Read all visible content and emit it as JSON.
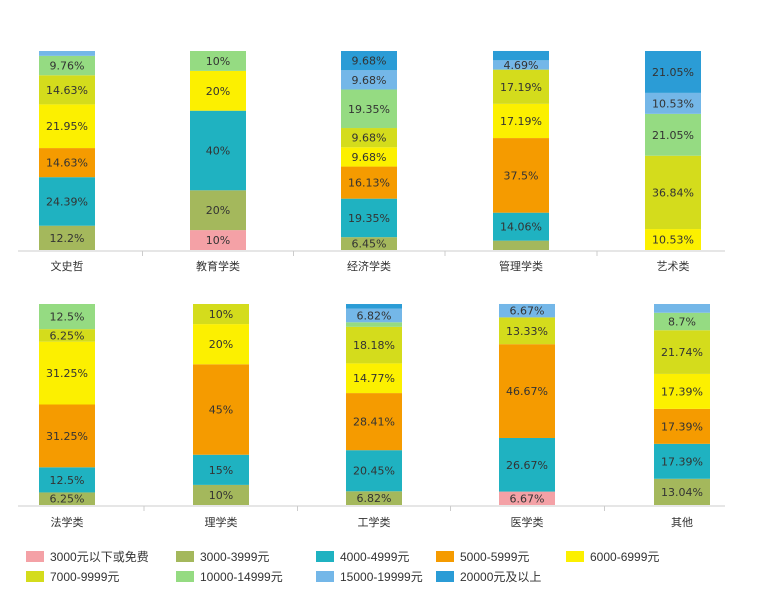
{
  "chart_data": [
    {
      "type": "bar",
      "stacked": true,
      "categories": [
        "文史哲",
        "教育学类",
        "经济学类",
        "管理学类",
        "艺术类"
      ],
      "series": [
        {
          "name": "3000元以下或免费",
          "values": [
            0,
            10,
            0,
            0,
            0
          ]
        },
        {
          "name": "3000-3999元",
          "values": [
            12.2,
            20,
            6.45,
            4.69,
            0
          ]
        },
        {
          "name": "4000-4999元",
          "values": [
            24.39,
            40,
            19.35,
            14.06,
            0
          ]
        },
        {
          "name": "5000-5999元",
          "values": [
            14.63,
            0,
            16.13,
            37.5,
            0
          ]
        },
        {
          "name": "6000-6999元",
          "values": [
            21.95,
            20,
            9.68,
            17.19,
            10.53
          ]
        },
        {
          "name": "7000-9999元",
          "values": [
            14.63,
            0,
            9.68,
            17.19,
            36.84
          ]
        },
        {
          "name": "10000-14999元",
          "values": [
            9.76,
            10,
            19.35,
            0,
            21.05
          ]
        },
        {
          "name": "15000-19999元",
          "values": [
            2.44,
            0,
            9.68,
            4.69,
            10.53
          ]
        },
        {
          "name": "20000元及以上",
          "values": [
            0,
            0,
            9.68,
            4.69,
            21.05
          ]
        }
      ],
      "labels": [
        [
          "",
          "12.2%",
          "24.39%",
          "14.63%",
          "21.95%",
          "14.63%",
          "9.76%",
          "",
          ""
        ],
        [
          "10%",
          "20%",
          "40%",
          "",
          "20%",
          "",
          "10%",
          "",
          ""
        ],
        [
          "",
          "6.45%",
          "19.35%",
          "16.13%",
          "9.68%",
          "9.68%",
          "19.35%",
          "9.68%",
          "9.68%"
        ],
        [
          "",
          "",
          "14.06%",
          "37.5%",
          "17.19%",
          "17.19%",
          "",
          "4.69%",
          ""
        ],
        [
          "",
          "",
          "",
          "",
          "10.53%",
          "36.84%",
          "21.05%",
          "10.53%",
          "21.05%"
        ]
      ],
      "ylim": [
        0,
        100
      ]
    },
    {
      "type": "bar",
      "stacked": true,
      "categories": [
        "法学类",
        "理学类",
        "工学类",
        "医学类",
        "其他"
      ],
      "series": [
        {
          "name": "3000元以下或免费",
          "values": [
            0,
            0,
            0,
            6.67,
            0
          ]
        },
        {
          "name": "3000-3999元",
          "values": [
            6.25,
            10,
            6.82,
            0,
            13.04
          ]
        },
        {
          "name": "4000-4999元",
          "values": [
            12.5,
            15,
            20.45,
            26.67,
            17.39
          ]
        },
        {
          "name": "5000-5999元",
          "values": [
            31.25,
            45,
            28.41,
            46.67,
            17.39
          ]
        },
        {
          "name": "6000-6999元",
          "values": [
            31.25,
            20,
            14.77,
            0,
            17.39
          ]
        },
        {
          "name": "7000-9999元",
          "values": [
            6.25,
            10,
            18.18,
            13.33,
            21.74
          ]
        },
        {
          "name": "10000-14999元",
          "values": [
            12.5,
            0,
            2.27,
            0,
            8.7
          ]
        },
        {
          "name": "15000-19999元",
          "values": [
            0,
            0,
            6.82,
            6.67,
            4.35
          ]
        },
        {
          "name": "20000元及以上",
          "values": [
            0,
            0,
            2.27,
            0,
            0
          ]
        }
      ],
      "labels": [
        [
          "",
          "6.25%",
          "12.5%",
          "31.25%",
          "31.25%",
          "6.25%",
          "12.5%",
          "",
          ""
        ],
        [
          "",
          "10%",
          "15%",
          "45%",
          "20%",
          "10%",
          "",
          "",
          ""
        ],
        [
          "",
          "6.82%",
          "20.45%",
          "28.41%",
          "14.77%",
          "18.18%",
          "",
          "6.82%",
          ""
        ],
        [
          "6.67%",
          "",
          "26.67%",
          "46.67%",
          "",
          "13.33%",
          "",
          "6.67%",
          ""
        ],
        [
          "",
          "13.04%",
          "17.39%",
          "17.39%",
          "17.39%",
          "21.74%",
          "8.7%",
          "",
          ""
        ]
      ],
      "ylim": [
        0,
        100
      ]
    }
  ],
  "legend": {
    "items": [
      {
        "name": "3000元以下或免费",
        "color": "#f4a1a6"
      },
      {
        "name": "3000-3999元",
        "color": "#a4b85c"
      },
      {
        "name": "4000-4999元",
        "color": "#1fb2c1"
      },
      {
        "name": "5000-5999元",
        "color": "#f59b00"
      },
      {
        "name": "6000-6999元",
        "color": "#fcf000"
      },
      {
        "name": "7000-9999元",
        "color": "#d4dc1c"
      },
      {
        "name": "10000-14999元",
        "color": "#95db82"
      },
      {
        "name": "15000-19999元",
        "color": "#74b7e8"
      },
      {
        "name": "20000元及以上",
        "color": "#2b9cd6"
      }
    ]
  }
}
